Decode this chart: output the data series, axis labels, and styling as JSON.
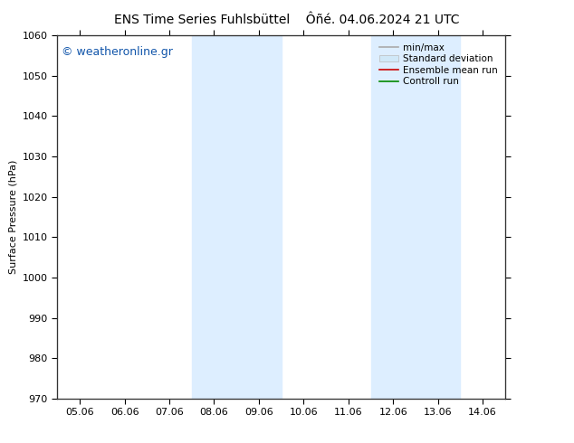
{
  "title_left": "ENS Time Series Fuhlsbüttel",
  "title_right": "Ôñé. 04.06.2024 21 UTC",
  "ylabel": "Surface Pressure (hPa)",
  "watermark": "© weatheronline.gr",
  "xlim_dates": [
    "05.06",
    "06.06",
    "07.06",
    "08.06",
    "09.06",
    "10.06",
    "11.06",
    "12.06",
    "13.06",
    "14.06"
  ],
  "ylim": [
    970,
    1060
  ],
  "yticks": [
    970,
    980,
    990,
    1000,
    1010,
    1020,
    1030,
    1040,
    1050,
    1060
  ],
  "shaded_bands": [
    {
      "xstart": 3,
      "xend": 5,
      "color": "#ddeeff"
    },
    {
      "xstart": 7,
      "xend": 9,
      "color": "#ddeeff"
    }
  ],
  "legend_entries": [
    {
      "label": "min/max",
      "color": "#aaaaaa",
      "lw": 1.2,
      "style": "solid"
    },
    {
      "label": "Standard deviation",
      "color": "#cccccc",
      "lw": 8,
      "style": "solid"
    },
    {
      "label": "Ensemble mean run",
      "color": "#cc0000",
      "lw": 1.2,
      "style": "solid"
    },
    {
      "label": "Controll run",
      "color": "#008800",
      "lw": 1.2,
      "style": "solid"
    }
  ],
  "background_color": "#ffffff",
  "title_fontsize": 10,
  "tick_fontsize": 8,
  "ylabel_fontsize": 8,
  "watermark_fontsize": 9,
  "watermark_color": "#1155aa",
  "border_color": "#333333"
}
